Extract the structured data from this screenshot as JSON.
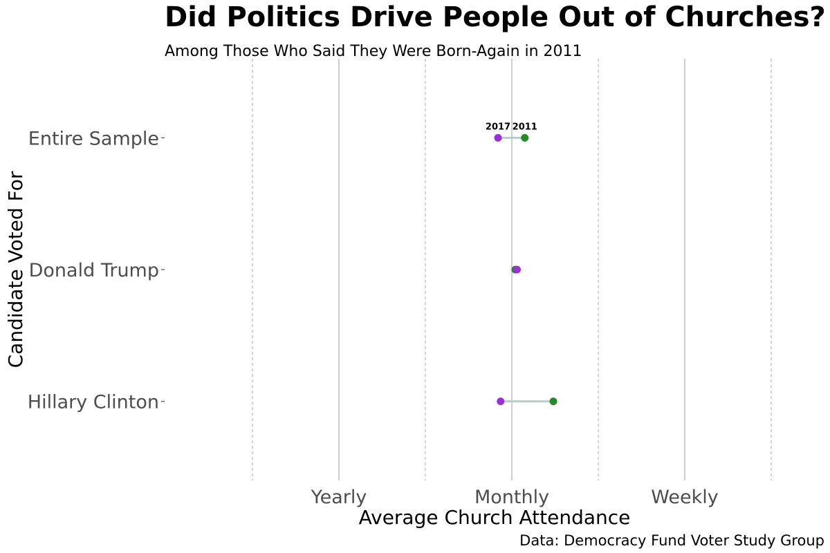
{
  "chart_data": {
    "type": "dumbbell",
    "title": "Did Politics Drive People Out of Churches?",
    "subtitle": "Among Those Who Said They Were Born-Again in 2011",
    "xlabel": "Average Church Attendance",
    "ylabel": "Candidate Voted For",
    "caption": "Data: Democracy Fund Voter Study Group",
    "x_ticks": [
      {
        "value": 2,
        "label": "Yearly"
      },
      {
        "value": 4,
        "label": "Monthly"
      },
      {
        "value": 6,
        "label": "Weekly"
      }
    ],
    "x_minor_ticks": [
      1,
      3,
      5,
      7
    ],
    "xlim": [
      0.0,
      7.6
    ],
    "categories": [
      "Entire Sample",
      "Donald Trump",
      "Hillary Clinton"
    ],
    "series": [
      {
        "name": "2017",
        "color": "#9b30d9",
        "values": [
          3.84,
          4.06,
          3.87
        ]
      },
      {
        "name": "2011",
        "color": "#228b22",
        "values": [
          4.15,
          4.04,
          4.48
        ]
      }
    ],
    "segment_color": "#b8cccc",
    "point_labels": {
      "category": "Entire Sample",
      "labels": [
        "2017",
        "2011"
      ]
    },
    "grid": true
  }
}
